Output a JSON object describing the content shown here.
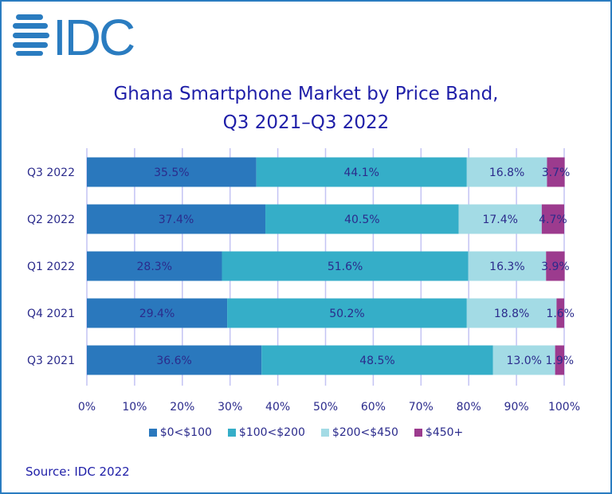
{
  "logo_text": "IDC",
  "source": "Source: IDC 2022",
  "chart_data": {
    "type": "bar",
    "orientation": "horizontal",
    "stacked": true,
    "title_lines": [
      "Ghana Smartphone Market by Price Band,",
      "Q3 2021–Q3 2022"
    ],
    "categories": [
      "Q3 2022",
      "Q2 2022",
      "Q1 2022",
      "Q4 2021",
      "Q3 2021"
    ],
    "series": [
      {
        "name": "$0<$100",
        "color": "#2a78bd",
        "values": [
          35.5,
          37.4,
          28.3,
          29.4,
          36.6
        ]
      },
      {
        "name": "$100<$200",
        "color": "#35aec8",
        "values": [
          44.1,
          40.5,
          51.6,
          50.2,
          48.5
        ]
      },
      {
        "name": "$200<$450",
        "color": "#a3dbe5",
        "values": [
          16.8,
          17.4,
          16.3,
          18.8,
          13.0
        ]
      },
      {
        "name": "$450+",
        "color": "#9c3b8e",
        "values": [
          3.7,
          4.7,
          3.9,
          1.6,
          1.9
        ]
      }
    ],
    "xlim": [
      0,
      100
    ],
    "xticks": [
      "0%",
      "10%",
      "20%",
      "30%",
      "40%",
      "50%",
      "60%",
      "70%",
      "80%",
      "90%",
      "100%"
    ],
    "grid": true,
    "legend": "bottom",
    "label_color": "#2b2b8c"
  }
}
